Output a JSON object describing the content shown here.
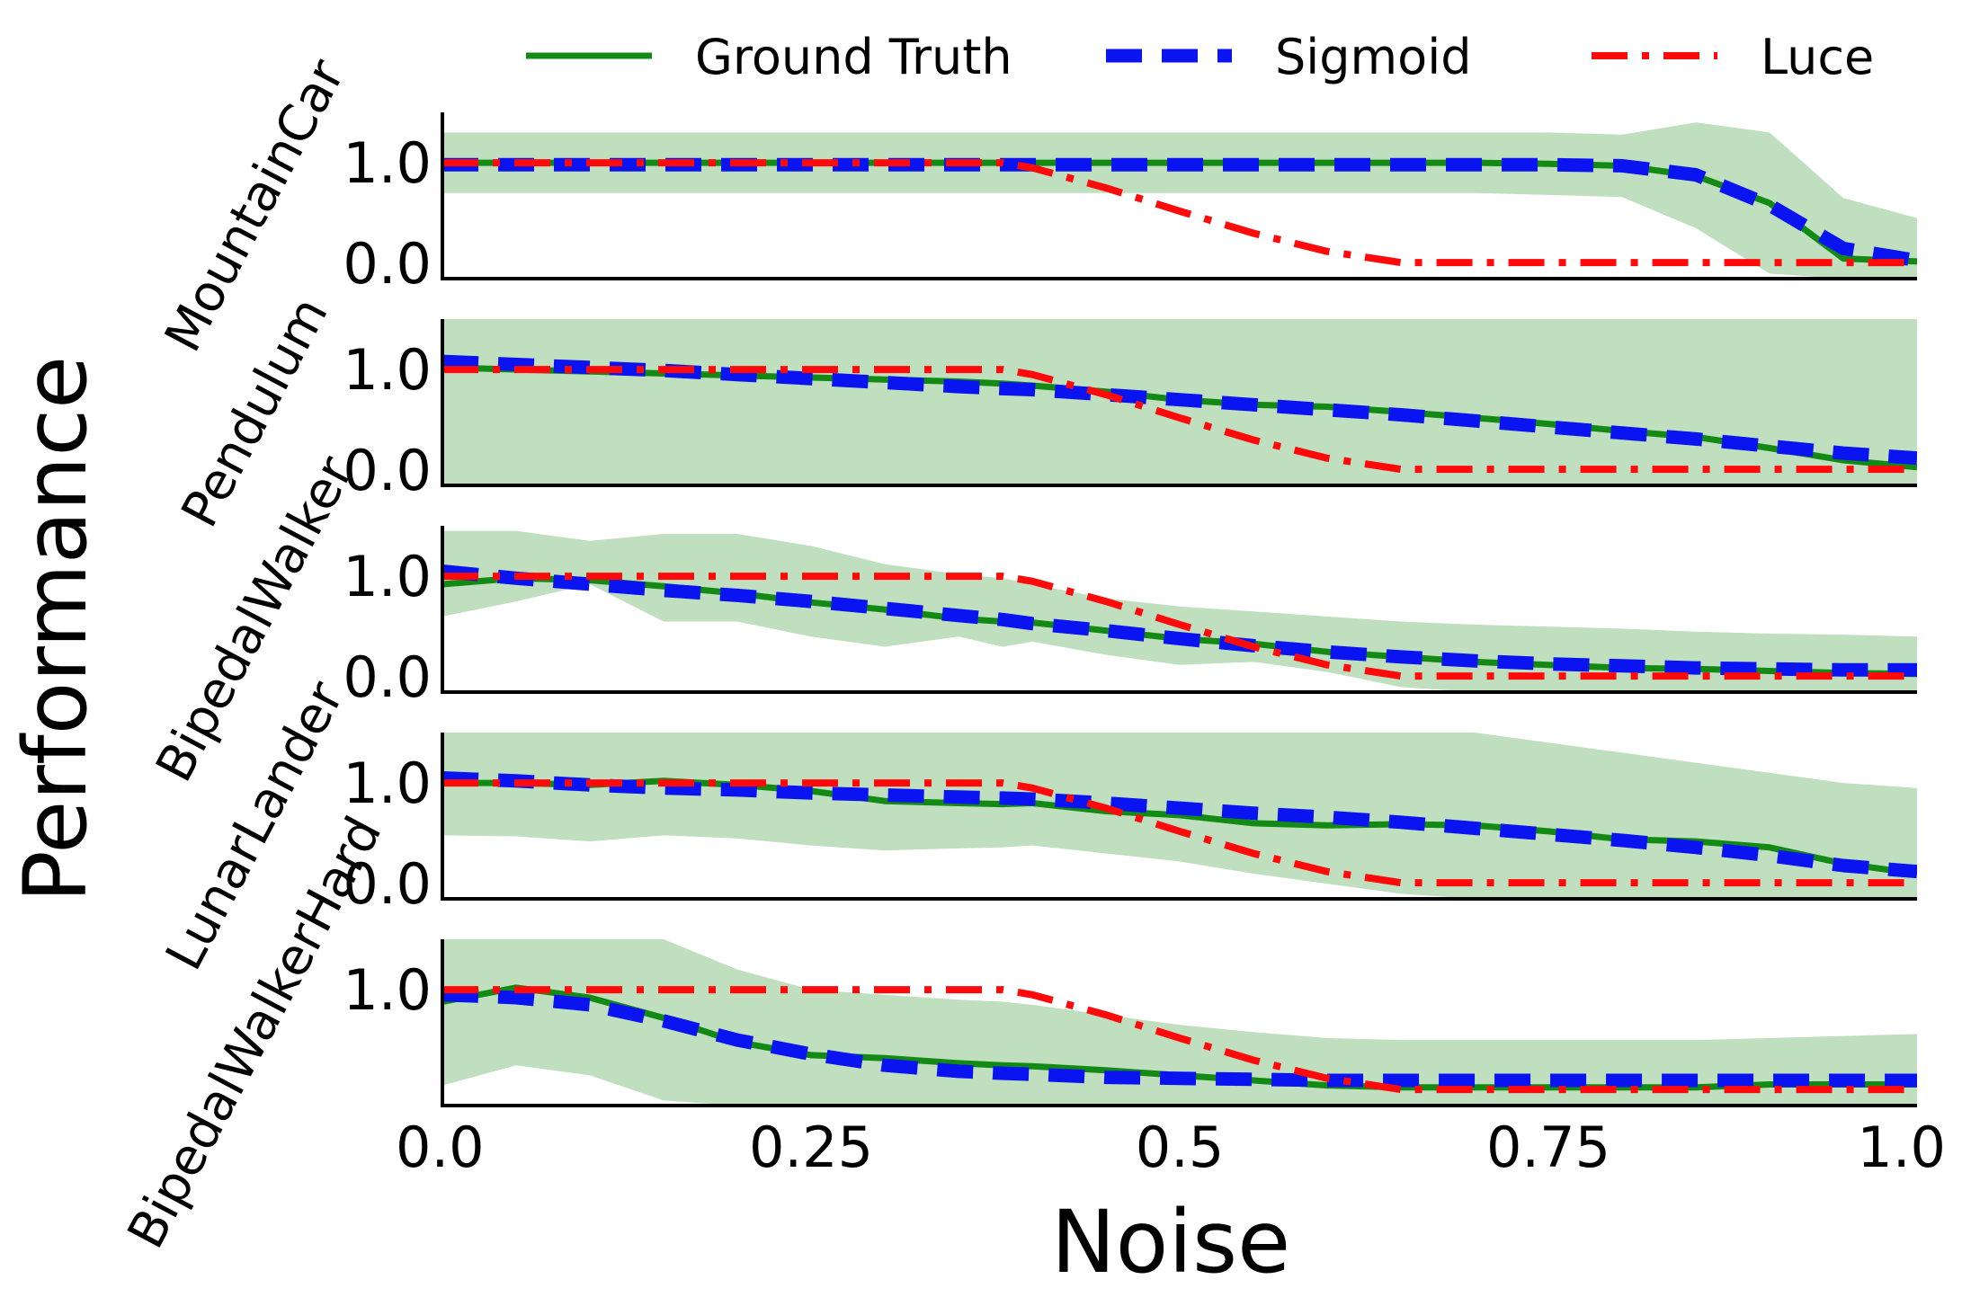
{
  "chart_data": {
    "type": "line",
    "xlabel": "Noise",
    "ylabel": "Performance",
    "xlim": [
      0,
      1
    ],
    "xticks": [
      {
        "value": 0,
        "label": "0.0"
      },
      {
        "value": 0.25,
        "label": "0.25"
      },
      {
        "value": 0.5,
        "label": "0.5"
      },
      {
        "value": 0.75,
        "label": "0.75"
      },
      {
        "value": 1,
        "label": "1.0"
      }
    ],
    "grid": false,
    "legend": {
      "placement": "top",
      "entries": [
        {
          "key": "ground_truth",
          "label": "Ground Truth",
          "color": "#138a13",
          "style": "solid"
        },
        {
          "key": "sigmoid",
          "label": "Sigmoid",
          "color": "#0a14f0",
          "style": "dashed"
        },
        {
          "key": "luce",
          "label": "Luce",
          "color": "#ff0a0a",
          "style": "dashdot"
        }
      ]
    },
    "band_color": "#bfdfbf",
    "panels": [
      {
        "name": "MountainCar",
        "ylim": [
          -0.15,
          1.5
        ],
        "yticks": [
          {
            "value": 0,
            "label": "0.0"
          },
          {
            "value": 1,
            "label": "1.0"
          }
        ],
        "x": [
          0,
          0.05,
          0.1,
          0.15,
          0.2,
          0.25,
          0.3,
          0.35,
          0.38,
          0.4,
          0.45,
          0.5,
          0.55,
          0.6,
          0.65,
          0.7,
          0.75,
          0.8,
          0.85,
          0.9,
          0.95,
          1.0
        ],
        "ground_truth": [
          1.0,
          1.0,
          1.0,
          1.0,
          1.0,
          1.0,
          1.0,
          1.0,
          1.0,
          1.0,
          1.0,
          1.0,
          1.0,
          1.0,
          1.0,
          1.0,
          0.99,
          0.97,
          0.87,
          0.6,
          0.05,
          0.02
        ],
        "sigmoid": [
          0.98,
          0.98,
          0.98,
          0.98,
          0.98,
          0.98,
          0.98,
          0.98,
          0.98,
          0.98,
          0.98,
          0.98,
          0.98,
          0.98,
          0.98,
          0.98,
          0.98,
          0.97,
          0.88,
          0.58,
          0.15,
          0.03
        ],
        "luce": [
          1.0,
          1.0,
          1.0,
          1.0,
          1.0,
          1.0,
          1.0,
          1.0,
          1.0,
          0.95,
          0.75,
          0.52,
          0.3,
          0.12,
          0.01,
          0.01,
          0.01,
          0.01,
          0.01,
          0.01,
          0.01,
          0.01
        ],
        "band_upper": [
          1.3,
          1.3,
          1.3,
          1.3,
          1.3,
          1.3,
          1.3,
          1.3,
          1.3,
          1.3,
          1.3,
          1.3,
          1.3,
          1.3,
          1.3,
          1.3,
          1.3,
          1.28,
          1.4,
          1.3,
          0.65,
          0.45
        ],
        "band_lower": [
          0.7,
          0.7,
          0.7,
          0.7,
          0.7,
          0.7,
          0.7,
          0.7,
          0.7,
          0.7,
          0.7,
          0.7,
          0.7,
          0.7,
          0.7,
          0.7,
          0.68,
          0.66,
          0.35,
          -0.1,
          -0.15,
          -0.15
        ]
      },
      {
        "name": "Pendulum",
        "ylim": [
          -0.15,
          1.5
        ],
        "yticks": [
          {
            "value": 0,
            "label": "0.0"
          },
          {
            "value": 1,
            "label": "1.0"
          }
        ],
        "x": [
          0,
          0.05,
          0.1,
          0.15,
          0.2,
          0.25,
          0.3,
          0.35,
          0.38,
          0.4,
          0.45,
          0.5,
          0.55,
          0.6,
          0.65,
          0.7,
          0.75,
          0.8,
          0.85,
          0.9,
          0.95,
          1.0
        ],
        "ground_truth": [
          1.02,
          1.0,
          0.98,
          0.96,
          0.94,
          0.92,
          0.9,
          0.88,
          0.86,
          0.84,
          0.78,
          0.7,
          0.65,
          0.63,
          0.58,
          0.52,
          0.46,
          0.39,
          0.33,
          0.22,
          0.1,
          0.03
        ],
        "sigmoid": [
          1.08,
          1.05,
          1.02,
          0.99,
          0.95,
          0.91,
          0.87,
          0.83,
          0.81,
          0.8,
          0.75,
          0.7,
          0.65,
          0.6,
          0.55,
          0.49,
          0.43,
          0.37,
          0.31,
          0.24,
          0.17,
          0.12
        ],
        "luce": [
          1.0,
          1.0,
          1.0,
          1.0,
          1.0,
          1.0,
          1.0,
          1.0,
          1.0,
          0.95,
          0.75,
          0.52,
          0.3,
          0.12,
          0.01,
          0.01,
          0.01,
          0.01,
          0.01,
          0.01,
          0.01,
          0.01
        ],
        "band_upper": [
          1.5,
          1.5,
          1.5,
          1.5,
          1.5,
          1.5,
          1.5,
          1.5,
          1.5,
          1.5,
          1.5,
          1.5,
          1.5,
          1.5,
          1.5,
          1.5,
          1.5,
          1.5,
          1.5,
          1.5,
          1.5,
          1.5
        ],
        "band_lower": [
          -0.15,
          -0.15,
          -0.15,
          -0.15,
          -0.15,
          -0.15,
          -0.15,
          -0.15,
          -0.15,
          -0.15,
          -0.15,
          -0.15,
          -0.15,
          -0.15,
          -0.15,
          -0.15,
          -0.15,
          -0.15,
          -0.15,
          -0.15,
          -0.15,
          -0.15
        ]
      },
      {
        "name": "BipedalWalker",
        "ylim": [
          -0.15,
          1.5
        ],
        "yticks": [
          {
            "value": 0,
            "label": "0.0"
          },
          {
            "value": 1,
            "label": "1.0"
          }
        ],
        "x": [
          0,
          0.05,
          0.1,
          0.15,
          0.2,
          0.25,
          0.3,
          0.35,
          0.38,
          0.4,
          0.45,
          0.5,
          0.55,
          0.6,
          0.65,
          0.7,
          0.75,
          0.8,
          0.85,
          0.9,
          0.95,
          1.0
        ],
        "ground_truth": [
          0.92,
          0.98,
          0.96,
          0.9,
          0.83,
          0.74,
          0.67,
          0.58,
          0.55,
          0.54,
          0.46,
          0.38,
          0.33,
          0.25,
          0.2,
          0.15,
          0.12,
          0.09,
          0.08,
          0.06,
          0.04,
          0.03
        ],
        "sigmoid": [
          1.05,
          0.98,
          0.92,
          0.86,
          0.81,
          0.75,
          0.68,
          0.61,
          0.57,
          0.53,
          0.46,
          0.38,
          0.31,
          0.25,
          0.2,
          0.16,
          0.13,
          0.11,
          0.09,
          0.08,
          0.07,
          0.07
        ],
        "luce": [
          1.0,
          1.0,
          1.0,
          1.0,
          1.0,
          1.0,
          1.0,
          1.0,
          1.0,
          0.95,
          0.75,
          0.52,
          0.3,
          0.12,
          0.01,
          0.01,
          0.01,
          0.01,
          0.01,
          0.01,
          0.01,
          0.01
        ],
        "band_upper": [
          1.45,
          1.45,
          1.35,
          1.42,
          1.42,
          1.3,
          1.12,
          1.02,
          0.98,
          0.92,
          0.78,
          0.7,
          0.65,
          0.6,
          0.55,
          0.52,
          0.5,
          0.48,
          0.45,
          0.43,
          0.42,
          0.4
        ],
        "band_lower": [
          0.6,
          0.75,
          0.92,
          0.55,
          0.55,
          0.4,
          0.3,
          0.4,
          0.3,
          0.35,
          0.22,
          0.12,
          0.15,
          0.05,
          -0.1,
          -0.15,
          -0.15,
          -0.15,
          -0.15,
          -0.15,
          -0.15,
          -0.15
        ]
      },
      {
        "name": "LunarLander",
        "ylim": [
          -0.15,
          1.5
        ],
        "yticks": [
          {
            "value": 0,
            "label": "0.0"
          },
          {
            "value": 1,
            "label": "1.0"
          }
        ],
        "x": [
          0,
          0.05,
          0.1,
          0.15,
          0.2,
          0.25,
          0.3,
          0.35,
          0.38,
          0.4,
          0.45,
          0.5,
          0.55,
          0.6,
          0.65,
          0.7,
          0.75,
          0.8,
          0.85,
          0.9,
          0.95,
          1.0
        ],
        "ground_truth": [
          1.0,
          1.0,
          0.98,
          1.02,
          0.98,
          0.92,
          0.82,
          0.8,
          0.79,
          0.8,
          0.72,
          0.68,
          0.6,
          0.58,
          0.59,
          0.58,
          0.52,
          0.44,
          0.42,
          0.36,
          0.2,
          0.1
        ],
        "sigmoid": [
          1.05,
          1.02,
          0.98,
          0.95,
          0.93,
          0.9,
          0.88,
          0.86,
          0.85,
          0.84,
          0.8,
          0.75,
          0.7,
          0.66,
          0.61,
          0.55,
          0.49,
          0.43,
          0.36,
          0.28,
          0.18,
          0.12
        ],
        "luce": [
          1.0,
          1.0,
          1.0,
          1.0,
          1.0,
          1.0,
          1.0,
          1.0,
          1.0,
          0.95,
          0.75,
          0.52,
          0.3,
          0.12,
          0.01,
          0.01,
          0.01,
          0.01,
          0.01,
          0.01,
          0.01,
          0.01
        ],
        "band_upper": [
          1.5,
          1.5,
          1.5,
          1.5,
          1.5,
          1.5,
          1.5,
          1.5,
          1.5,
          1.5,
          1.5,
          1.5,
          1.5,
          1.5,
          1.5,
          1.5,
          1.4,
          1.3,
          1.2,
          1.1,
          1.0,
          0.95
        ],
        "band_lower": [
          0.48,
          0.47,
          0.42,
          0.48,
          0.45,
          0.38,
          0.33,
          0.35,
          0.36,
          0.38,
          0.3,
          0.22,
          0.1,
          0.0,
          -0.1,
          -0.15,
          -0.15,
          -0.15,
          -0.15,
          -0.15,
          -0.15,
          -0.15
        ]
      },
      {
        "name": "BipedalWalkerHard",
        "ylim": [
          -0.15,
          1.5
        ],
        "yticks": [
          {
            "value": 1,
            "label": "1.0"
          }
        ],
        "x": [
          0,
          0.05,
          0.1,
          0.15,
          0.2,
          0.25,
          0.3,
          0.35,
          0.38,
          0.4,
          0.45,
          0.5,
          0.55,
          0.6,
          0.65,
          0.7,
          0.75,
          0.8,
          0.85,
          0.9,
          0.95,
          1.0
        ],
        "ground_truth": [
          0.88,
          1.02,
          0.92,
          0.72,
          0.48,
          0.35,
          0.32,
          0.27,
          0.25,
          0.24,
          0.2,
          0.15,
          0.1,
          0.05,
          0.03,
          0.03,
          0.03,
          0.03,
          0.03,
          0.06,
          0.06,
          0.06
        ],
        "sigmoid": [
          0.95,
          0.92,
          0.85,
          0.69,
          0.5,
          0.36,
          0.25,
          0.19,
          0.17,
          0.16,
          0.13,
          0.12,
          0.11,
          0.1,
          0.1,
          0.1,
          0.1,
          0.1,
          0.1,
          0.1,
          0.1,
          0.1
        ],
        "luce": [
          1.0,
          1.0,
          1.0,
          1.0,
          1.0,
          1.0,
          1.0,
          1.0,
          1.0,
          0.95,
          0.75,
          0.52,
          0.3,
          0.12,
          0.01,
          0.01,
          0.01,
          0.01,
          0.01,
          0.01,
          0.01,
          0.01
        ],
        "band_upper": [
          1.5,
          1.5,
          1.5,
          1.5,
          1.2,
          1.0,
          0.95,
          0.9,
          0.88,
          0.85,
          0.75,
          0.65,
          0.58,
          0.52,
          0.5,
          0.5,
          0.5,
          0.5,
          0.5,
          0.52,
          0.54,
          0.56
        ],
        "band_lower": [
          0.05,
          0.25,
          0.15,
          -0.1,
          -0.15,
          -0.15,
          -0.15,
          -0.15,
          -0.15,
          -0.15,
          -0.15,
          -0.15,
          -0.15,
          -0.15,
          -0.15,
          -0.15,
          -0.15,
          -0.15,
          -0.15,
          -0.15,
          -0.15,
          -0.15
        ]
      }
    ]
  }
}
